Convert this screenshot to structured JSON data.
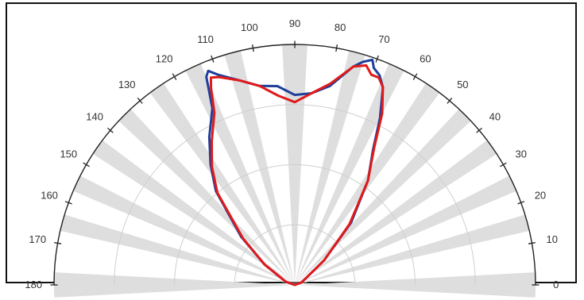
{
  "chart_data": {
    "type": "polar-line",
    "angular_axis": {
      "unit": "degrees",
      "range": [
        0,
        180
      ],
      "ticks": [
        0,
        10,
        20,
        30,
        40,
        50,
        60,
        70,
        80,
        90,
        100,
        110,
        120,
        130,
        140,
        150,
        160,
        170,
        180
      ],
      "tick_labels": [
        "0",
        "10",
        "20",
        "30",
        "40",
        "50",
        "60",
        "70",
        "80",
        "90",
        "100",
        "110",
        "120",
        "130",
        "140",
        "150",
        "160",
        "170",
        "180"
      ],
      "shaded_sectors": [
        [
          -3,
          3
        ],
        [
          13,
          17
        ],
        [
          23,
          27
        ],
        [
          33,
          37
        ],
        [
          43,
          47
        ],
        [
          53,
          57
        ],
        [
          63,
          67
        ],
        [
          73,
          77
        ],
        [
          87,
          93
        ],
        [
          103,
          107
        ],
        [
          113,
          117
        ],
        [
          123,
          127
        ],
        [
          133,
          137
        ],
        [
          143,
          147
        ],
        [
          153,
          157
        ],
        [
          163,
          167
        ],
        [
          177,
          183
        ]
      ]
    },
    "radial_axis": {
      "range": [
        0,
        1
      ],
      "ticks": [
        0.25,
        0.5,
        0.75,
        1.0
      ],
      "grid": true
    },
    "series": [
      {
        "color": "#1f3f9a",
        "points": [
          [
            70,
            0.96
          ],
          [
            71,
            0.99
          ],
          [
            73,
            0.97
          ],
          [
            75,
            0.94
          ],
          [
            80,
            0.84
          ],
          [
            85,
            0.8
          ],
          [
            90,
            0.79
          ],
          [
            95,
            0.83
          ],
          [
            100,
            0.84
          ],
          [
            105,
            0.88
          ],
          [
            110,
            0.93
          ],
          [
            112,
            0.96
          ],
          [
            113,
            0.94
          ],
          [
            115,
            0.81
          ],
          [
            120,
            0.71
          ],
          [
            125,
            0.61
          ],
          [
            130,
            0.51
          ],
          [
            138,
            0.3
          ],
          [
            146,
            0.15
          ],
          [
            160,
            0.04
          ],
          [
            180,
            0.0
          ]
        ]
      },
      {
        "color": "#e01a1a",
        "points": [
          [
            70,
            0.93
          ],
          [
            72,
            0.96
          ],
          [
            75,
            0.94
          ],
          [
            80,
            0.85
          ],
          [
            85,
            0.8
          ],
          [
            90,
            0.76
          ],
          [
            95,
            0.79
          ],
          [
            100,
            0.84
          ],
          [
            105,
            0.88
          ],
          [
            110,
            0.92
          ],
          [
            112,
            0.93
          ],
          [
            113,
            0.89
          ],
          [
            115,
            0.79
          ],
          [
            120,
            0.69
          ],
          [
            125,
            0.6
          ],
          [
            130,
            0.5
          ],
          [
            138,
            0.29
          ],
          [
            146,
            0.15
          ],
          [
            160,
            0.04
          ],
          [
            180,
            0.0
          ]
        ]
      },
      {
        "color": "#1f3f9a",
        "points": [
          [
            0,
            0.0
          ],
          [
            20,
            0.03
          ],
          [
            40,
            0.16
          ],
          [
            48,
            0.35
          ],
          [
            55,
            0.53
          ],
          [
            60,
            0.65
          ],
          [
            63,
            0.78
          ],
          [
            66,
            0.9
          ],
          [
            68,
            0.94
          ],
          [
            70,
            0.96
          ]
        ]
      },
      {
        "color": "#e01a1a",
        "points": [
          [
            0,
            0.0
          ],
          [
            20,
            0.03
          ],
          [
            40,
            0.16
          ],
          [
            48,
            0.34
          ],
          [
            55,
            0.53
          ],
          [
            60,
            0.66
          ],
          [
            63,
            0.8
          ],
          [
            66,
            0.9
          ],
          [
            68,
            0.93
          ],
          [
            70,
            0.93
          ]
        ]
      }
    ]
  }
}
